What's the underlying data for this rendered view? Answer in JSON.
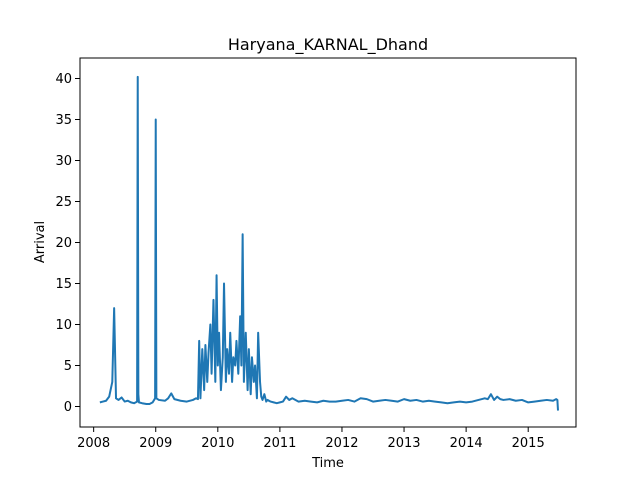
{
  "chart_data": {
    "type": "line",
    "title": "Haryana_KARNAL_Dhand",
    "xlabel": "Time",
    "ylabel": "Arrival",
    "xlim": [
      2007.78,
      2015.77
    ],
    "ylim": [
      -2.5,
      42.5
    ],
    "xticks": [
      2008,
      2009,
      2010,
      2011,
      2012,
      2013,
      2014,
      2015
    ],
    "xtick_labels": [
      "2008",
      "2009",
      "2010",
      "2011",
      "2012",
      "2013",
      "2014",
      "2015"
    ],
    "yticks": [
      0,
      5,
      10,
      15,
      20,
      25,
      30,
      35,
      40
    ],
    "ytick_labels": [
      "0",
      "5",
      "10",
      "15",
      "20",
      "25",
      "30",
      "35",
      "40"
    ],
    "grid": false,
    "line_color": "#1f77b4",
    "series": [
      {
        "x": [
          2008.1,
          2008.15,
          2008.2,
          2008.25,
          2008.3,
          2008.33,
          2008.36,
          2008.4,
          2008.45,
          2008.5,
          2008.55,
          2008.6,
          2008.65,
          2008.7,
          2008.71,
          2008.72,
          2008.73,
          2008.78,
          2008.85,
          2008.9,
          2008.95,
          2008.99,
          2009.0,
          2009.01,
          2009.05,
          2009.15,
          2009.2,
          2009.25,
          2009.3,
          2009.4,
          2009.5,
          2009.6,
          2009.65,
          2009.68,
          2009.7,
          2009.72,
          2009.75,
          2009.78,
          2009.8,
          2009.83,
          2009.85,
          2009.88,
          2009.9,
          2009.93,
          2009.96,
          2009.98,
          2010.0,
          2010.02,
          2010.05,
          2010.08,
          2010.1,
          2010.13,
          2010.15,
          2010.18,
          2010.2,
          2010.23,
          2010.25,
          2010.28,
          2010.3,
          2010.33,
          2010.36,
          2010.38,
          2010.4,
          2010.42,
          2010.45,
          2010.48,
          2010.5,
          2010.53,
          2010.55,
          2010.58,
          2010.6,
          2010.63,
          2010.65,
          2010.68,
          2010.7,
          2010.72,
          2010.75,
          2010.78,
          2010.8,
          2010.85,
          2010.9,
          2010.95,
          2011.0,
          2011.05,
          2011.1,
          2011.15,
          2011.2,
          2011.3,
          2011.4,
          2011.5,
          2011.6,
          2011.7,
          2011.8,
          2011.9,
          2012.0,
          2012.1,
          2012.2,
          2012.3,
          2012.4,
          2012.5,
          2012.6,
          2012.7,
          2012.8,
          2012.9,
          2013.0,
          2013.1,
          2013.2,
          2013.3,
          2013.4,
          2013.5,
          2013.6,
          2013.7,
          2013.8,
          2013.9,
          2014.0,
          2014.1,
          2014.2,
          2014.3,
          2014.35,
          2014.4,
          2014.45,
          2014.5,
          2014.55,
          2014.6,
          2014.7,
          2014.8,
          2014.9,
          2015.0,
          2015.1,
          2015.2,
          2015.3,
          2015.4,
          2015.45,
          2015.47,
          2015.48
        ],
        "y": [
          0.5,
          0.6,
          0.7,
          1.2,
          3.0,
          12.0,
          1.0,
          0.8,
          1.1,
          0.6,
          0.7,
          0.5,
          0.4,
          0.6,
          40.2,
          1.5,
          0.5,
          0.4,
          0.3,
          0.3,
          0.5,
          1.0,
          35.0,
          1.0,
          0.8,
          0.7,
          1.0,
          1.6,
          0.9,
          0.7,
          0.6,
          0.8,
          1.0,
          0.9,
          8.0,
          1.0,
          7.0,
          2.0,
          7.5,
          3.0,
          6.5,
          10.0,
          4.0,
          13.0,
          3.0,
          16.0,
          5.0,
          9.0,
          2.0,
          6.0,
          15.0,
          3.0,
          7.0,
          4.0,
          9.0,
          3.0,
          6.0,
          5.0,
          8.0,
          4.0,
          11.0,
          5.0,
          21.0,
          3.0,
          9.0,
          2.0,
          7.0,
          1.5,
          6.0,
          3.0,
          5.0,
          1.0,
          9.0,
          3.0,
          1.2,
          0.8,
          1.5,
          0.6,
          0.8,
          0.6,
          0.5,
          0.4,
          0.5,
          0.6,
          1.2,
          0.8,
          1.0,
          0.6,
          0.7,
          0.6,
          0.5,
          0.7,
          0.6,
          0.6,
          0.7,
          0.8,
          0.6,
          1.0,
          0.9,
          0.6,
          0.7,
          0.8,
          0.7,
          0.6,
          0.9,
          0.7,
          0.8,
          0.6,
          0.7,
          0.6,
          0.5,
          0.4,
          0.5,
          0.6,
          0.5,
          0.6,
          0.8,
          1.0,
          0.9,
          1.5,
          0.8,
          1.2,
          0.9,
          0.8,
          0.9,
          0.7,
          0.8,
          0.5,
          0.6,
          0.7,
          0.8,
          0.7,
          0.9,
          0.8,
          -0.5
        ]
      }
    ]
  }
}
